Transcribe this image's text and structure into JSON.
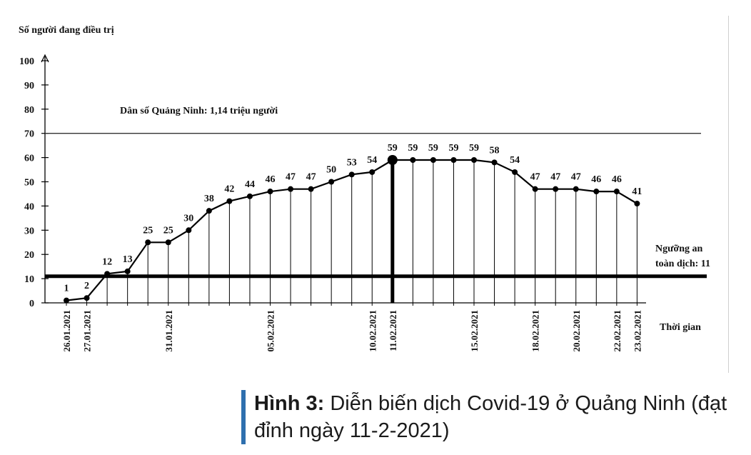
{
  "chart_data": {
    "type": "line",
    "ylabel": "Số người đang điều trị",
    "xlabel": "Thời gian",
    "ylim": [
      0,
      100
    ],
    "yticks": [
      0,
      10,
      20,
      30,
      40,
      50,
      60,
      70,
      80,
      90,
      100
    ],
    "annotation_population": "Dân số Quảng Ninh: 1,14 triệu người",
    "threshold_label_line1": "Ngưỡng an",
    "threshold_label_line2": "toàn dịch: 11",
    "threshold_value": 11,
    "reference_line_value": 70,
    "peak_index": 16,
    "series": [
      {
        "values": [
          1,
          2,
          12,
          13,
          25,
          25,
          30,
          38,
          42,
          44,
          46,
          47,
          47,
          50,
          53,
          54,
          59,
          59,
          59,
          59,
          59,
          58,
          54,
          47,
          47,
          47,
          46,
          46,
          41
        ]
      }
    ],
    "x_date_labels": [
      {
        "index": 0,
        "label": "26.01.2021"
      },
      {
        "index": 1,
        "label": "27.01.2021"
      },
      {
        "index": 5,
        "label": "31.01.2021"
      },
      {
        "index": 10,
        "label": "05.02.2021"
      },
      {
        "index": 15,
        "label": "10.02.2021"
      },
      {
        "index": 16,
        "label": "11.02.2021"
      },
      {
        "index": 20,
        "label": "15.02.2021"
      },
      {
        "index": 23,
        "label": "18.02.2021"
      },
      {
        "index": 25,
        "label": "20.02.2021"
      },
      {
        "index": 27,
        "label": "22.02.2021"
      },
      {
        "index": 28,
        "label": "23.02.2021"
      }
    ]
  },
  "caption": {
    "bold": "Hình 3:",
    "text": " Diễn biến dịch Covid-19 ở Quảng Ninh (đạt đỉnh ngày 11-2-2021)"
  },
  "colors": {
    "line": "#000000",
    "caption_bar": "#2e6fae"
  }
}
